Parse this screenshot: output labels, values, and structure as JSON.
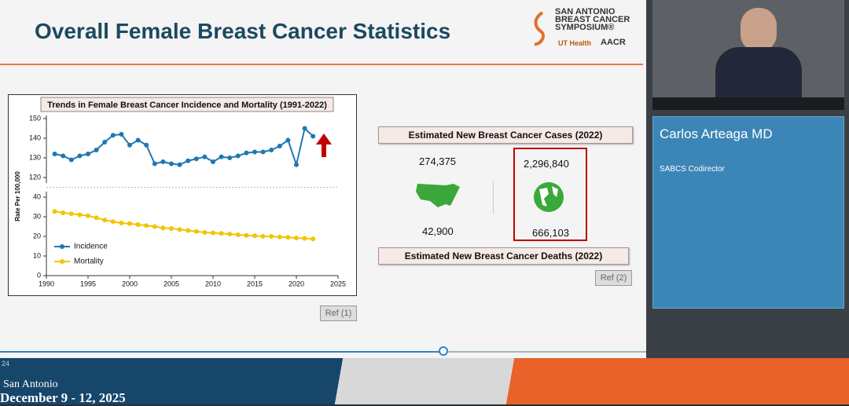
{
  "slide": {
    "title": "Overall Female Breast Cancer Statistics",
    "logo_lines": [
      "SAN ANTONIO",
      "BREAST CANCER",
      "SYMPOSIUM®"
    ],
    "logo_partners": [
      "UT Health",
      "AACR"
    ],
    "cases_header": "Estimated New Breast Cancer Cases (2022)",
    "deaths_header": "Estimated New Breast Cancer Deaths (2022)",
    "us_cases": "274,375",
    "us_deaths": "42,900",
    "world_cases": "2,296,840",
    "world_deaths": "666,103",
    "ref_1": "Ref (1)",
    "ref_2": "Ref (2)"
  },
  "speaker": {
    "name": "Carlos Arteaga MD",
    "role": "SABCS Codirector"
  },
  "banner": {
    "city": "San Antonio",
    "dates": "December 9 - 12, 2025",
    "timestamp": "24"
  },
  "chart_data": {
    "type": "line",
    "title": "Trends in Female Breast Cancer Incidence and Mortality (1991-2022)",
    "y_label": "Rate Per 100,000",
    "x": [
      1991,
      1992,
      1993,
      1994,
      1995,
      1996,
      1997,
      1998,
      1999,
      2000,
      2001,
      2002,
      2003,
      2004,
      2005,
      2006,
      2007,
      2008,
      2009,
      2010,
      2011,
      2012,
      2013,
      2014,
      2015,
      2016,
      2017,
      2018,
      2019,
      2020,
      2021,
      2022
    ],
    "series": [
      {
        "name": "Incidence",
        "color": "#1f77b4",
        "values": [
          132,
          131,
          129,
          131,
          132,
          134,
          138,
          141.5,
          142,
          136.5,
          139,
          136.5,
          127,
          128,
          127,
          126.5,
          128.5,
          129.5,
          130.5,
          128,
          130.5,
          130,
          131,
          132.5,
          133,
          133,
          134,
          136,
          139,
          126.5,
          145,
          141
        ]
      },
      {
        "name": "Mortality",
        "color": "#f2c500",
        "values": [
          32.7,
          32,
          31.5,
          31,
          30.5,
          29.5,
          28.3,
          27.5,
          26.8,
          26.5,
          26,
          25.5,
          25,
          24.3,
          24,
          23.5,
          23,
          22.5,
          22,
          21.8,
          21.5,
          21.2,
          20.8,
          20.5,
          20.3,
          20,
          20,
          19.7,
          19.5,
          19.2,
          19,
          18.7
        ]
      }
    ],
    "xlim": [
      1990,
      2025
    ],
    "xticks": [
      1990,
      1995,
      2000,
      2005,
      2010,
      2015,
      2020,
      2025
    ],
    "ylim": [
      0,
      150
    ],
    "yticks": [
      0,
      10,
      20,
      30,
      40,
      120,
      130,
      140,
      150
    ],
    "y_break": [
      40,
      120
    ],
    "legend": "lower-left"
  }
}
